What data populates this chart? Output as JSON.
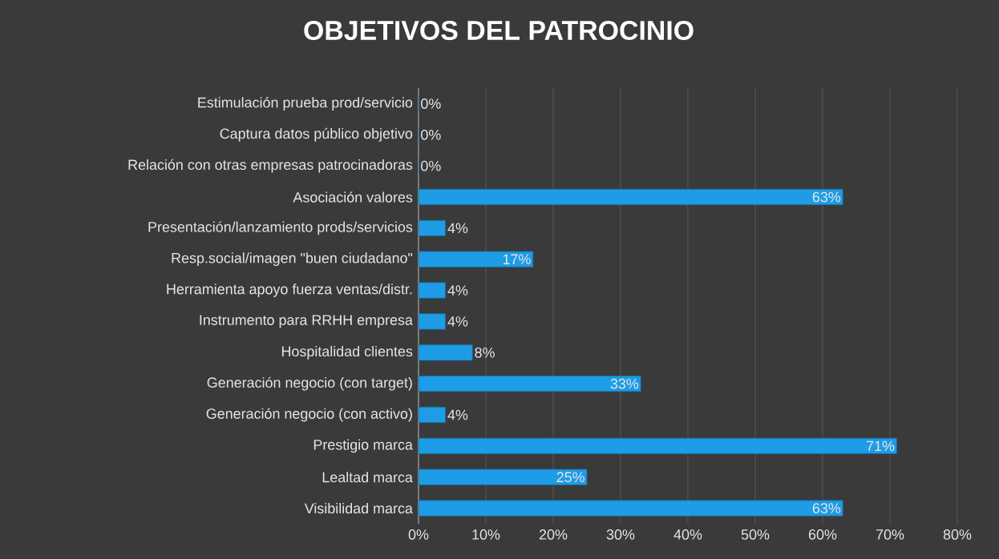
{
  "chart_data": {
    "type": "bar",
    "orientation": "horizontal",
    "title": "OBJETIVOS DEL PATROCINIO",
    "categories": [
      "Estimulación prueba prod/servicio",
      "Captura datos público objetivo",
      "Relación con otras empresas patrocinadoras",
      "Asociación valores",
      "Presentación/lanzamiento prods/servicios",
      "Resp.social/imagen \"buen ciudadano\"",
      "Herramienta apoyo fuerza ventas/distr.",
      "Instrumento para RRHH empresa",
      "Hospitalidad clientes",
      "Generación negocio (con target)",
      "Generación negocio (con activo)",
      "Prestigio marca",
      "Lealtad marca",
      "Visibilidad marca"
    ],
    "values": [
      0,
      0,
      0,
      63,
      4,
      17,
      4,
      4,
      8,
      33,
      4,
      71,
      25,
      63
    ],
    "value_labels": [
      "0%",
      "0%",
      "0%",
      "63%",
      "4%",
      "17%",
      "4%",
      "4%",
      "8%",
      "33%",
      "4%",
      "71%",
      "25%",
      "63%"
    ],
    "color": "#1e9ce6",
    "xlim": [
      0,
      80
    ],
    "xticks": [
      {
        "value": 0,
        "label": "0%"
      },
      {
        "value": 10,
        "label": "10%"
      },
      {
        "value": 20,
        "label": "20%"
      },
      {
        "value": 30,
        "label": "30%"
      },
      {
        "value": 40,
        "label": "40%"
      },
      {
        "value": 50,
        "label": "50%"
      },
      {
        "value": 60,
        "label": "60%"
      },
      {
        "value": 70,
        "label": "70%"
      },
      {
        "value": 80,
        "label": "80%"
      }
    ],
    "grid": "x"
  }
}
